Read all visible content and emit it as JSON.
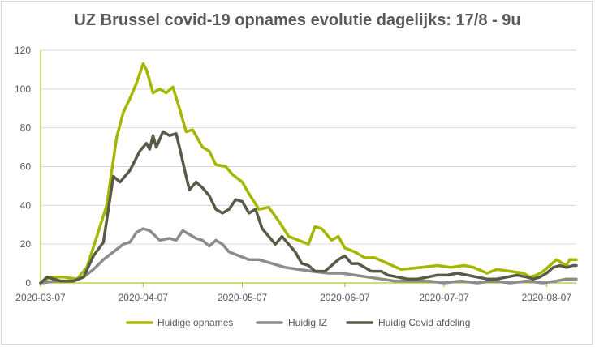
{
  "colors": {
    "opnames": "#a5b600",
    "iz": "#8c8c8c",
    "afdeling": "#575b48",
    "axis": "#a5b600",
    "grid": "#d9d9d9"
  },
  "chart_data": {
    "type": "line",
    "title": "UZ Brussel covid-19 opnames evolutie dagelijks: 17/8 - 9u",
    "xlabel": "",
    "ylabel": "",
    "ylim": [
      0,
      120
    ],
    "yticks": [
      "0",
      "20",
      "40",
      "60",
      "80",
      "100",
      "120"
    ],
    "xticks": [
      "2020-03-07",
      "2020-04-07",
      "2020-05-07",
      "2020-06-07",
      "2020-07-07",
      "2020-08-07"
    ],
    "grid": "horizontal",
    "legend": "bottom",
    "series": [
      {
        "name": "Huidige opnames",
        "color": "#a5b600",
        "points": [
          [
            "2020-03-07",
            0
          ],
          [
            "2020-03-10",
            3
          ],
          [
            "2020-03-14",
            3
          ],
          [
            "2020-03-18",
            2
          ],
          [
            "2020-03-21",
            8
          ],
          [
            "2020-03-24",
            24
          ],
          [
            "2020-03-27",
            40
          ],
          [
            "2020-03-30",
            75
          ],
          [
            "2020-04-01",
            88
          ],
          [
            "2020-04-03",
            95
          ],
          [
            "2020-04-05",
            103
          ],
          [
            "2020-04-07",
            113
          ],
          [
            "2020-04-08",
            110
          ],
          [
            "2020-04-10",
            98
          ],
          [
            "2020-04-12",
            100
          ],
          [
            "2020-04-14",
            98
          ],
          [
            "2020-04-16",
            101
          ],
          [
            "2020-04-18",
            90
          ],
          [
            "2020-04-20",
            78
          ],
          [
            "2020-04-22",
            79
          ],
          [
            "2020-04-25",
            70
          ],
          [
            "2020-04-27",
            68
          ],
          [
            "2020-04-29",
            61
          ],
          [
            "2020-05-02",
            60
          ],
          [
            "2020-05-04",
            56
          ],
          [
            "2020-05-07",
            52
          ],
          [
            "2020-05-09",
            46
          ],
          [
            "2020-05-12",
            38
          ],
          [
            "2020-05-15",
            39
          ],
          [
            "2020-05-18",
            32
          ],
          [
            "2020-05-21",
            24
          ],
          [
            "2020-05-24",
            22
          ],
          [
            "2020-05-27",
            20
          ],
          [
            "2020-05-29",
            29
          ],
          [
            "2020-05-31",
            28
          ],
          [
            "2020-06-03",
            22
          ],
          [
            "2020-06-05",
            24
          ],
          [
            "2020-06-07",
            18
          ],
          [
            "2020-06-10",
            16
          ],
          [
            "2020-06-13",
            13
          ],
          [
            "2020-06-16",
            13
          ],
          [
            "2020-06-20",
            10
          ],
          [
            "2020-06-24",
            7
          ],
          [
            "2020-06-30",
            8
          ],
          [
            "2020-07-05",
            9
          ],
          [
            "2020-07-09",
            8
          ],
          [
            "2020-07-13",
            9
          ],
          [
            "2020-07-16",
            8
          ],
          [
            "2020-07-20",
            5
          ],
          [
            "2020-07-23",
            7
          ],
          [
            "2020-07-27",
            6
          ],
          [
            "2020-07-31",
            5
          ],
          [
            "2020-08-02",
            3
          ],
          [
            "2020-08-04",
            4
          ],
          [
            "2020-08-06",
            6
          ],
          [
            "2020-08-08",
            9
          ],
          [
            "2020-08-10",
            12
          ],
          [
            "2020-08-12",
            10
          ],
          [
            "2020-08-13",
            9
          ],
          [
            "2020-08-14",
            12
          ],
          [
            "2020-08-16",
            12
          ]
        ]
      },
      {
        "name": "Huidig IZ",
        "color": "#8c8c8c",
        "points": [
          [
            "2020-03-07",
            0
          ],
          [
            "2020-03-12",
            1
          ],
          [
            "2020-03-17",
            1
          ],
          [
            "2020-03-20",
            3
          ],
          [
            "2020-03-23",
            7
          ],
          [
            "2020-03-26",
            12
          ],
          [
            "2020-03-29",
            16
          ],
          [
            "2020-04-01",
            20
          ],
          [
            "2020-04-03",
            21
          ],
          [
            "2020-04-05",
            26
          ],
          [
            "2020-04-07",
            28
          ],
          [
            "2020-04-09",
            27
          ],
          [
            "2020-04-12",
            22
          ],
          [
            "2020-04-15",
            23
          ],
          [
            "2020-04-17",
            22
          ],
          [
            "2020-04-19",
            27
          ],
          [
            "2020-04-21",
            25
          ],
          [
            "2020-04-23",
            23
          ],
          [
            "2020-04-25",
            22
          ],
          [
            "2020-04-27",
            19
          ],
          [
            "2020-04-29",
            22
          ],
          [
            "2020-05-01",
            20
          ],
          [
            "2020-05-03",
            16
          ],
          [
            "2020-05-06",
            14
          ],
          [
            "2020-05-09",
            12
          ],
          [
            "2020-05-12",
            12
          ],
          [
            "2020-05-16",
            10
          ],
          [
            "2020-05-20",
            8
          ],
          [
            "2020-05-24",
            7
          ],
          [
            "2020-05-28",
            6
          ],
          [
            "2020-06-02",
            5
          ],
          [
            "2020-06-06",
            5
          ],
          [
            "2020-06-10",
            4
          ],
          [
            "2020-06-14",
            3
          ],
          [
            "2020-06-18",
            2
          ],
          [
            "2020-06-22",
            1
          ],
          [
            "2020-06-27",
            1
          ],
          [
            "2020-07-02",
            1
          ],
          [
            "2020-07-07",
            0
          ],
          [
            "2020-07-12",
            1
          ],
          [
            "2020-07-17",
            0
          ],
          [
            "2020-07-22",
            1
          ],
          [
            "2020-07-27",
            0
          ],
          [
            "2020-08-01",
            1
          ],
          [
            "2020-08-06",
            0
          ],
          [
            "2020-08-10",
            1
          ],
          [
            "2020-08-13",
            2
          ],
          [
            "2020-08-16",
            2
          ]
        ]
      },
      {
        "name": "Huidig Covid afdeling",
        "color": "#575b48",
        "points": [
          [
            "2020-03-07",
            0
          ],
          [
            "2020-03-09",
            3
          ],
          [
            "2020-03-13",
            1
          ],
          [
            "2020-03-17",
            1
          ],
          [
            "2020-03-20",
            3
          ],
          [
            "2020-03-23",
            14
          ],
          [
            "2020-03-26",
            21
          ],
          [
            "2020-03-29",
            55
          ],
          [
            "2020-03-31",
            52
          ],
          [
            "2020-04-03",
            58
          ],
          [
            "2020-04-06",
            68
          ],
          [
            "2020-04-08",
            72
          ],
          [
            "2020-04-09",
            69
          ],
          [
            "2020-04-10",
            76
          ],
          [
            "2020-04-11",
            70
          ],
          [
            "2020-04-13",
            78
          ],
          [
            "2020-04-15",
            76
          ],
          [
            "2020-04-17",
            77
          ],
          [
            "2020-04-18",
            70
          ],
          [
            "2020-04-20",
            55
          ],
          [
            "2020-04-21",
            48
          ],
          [
            "2020-04-23",
            52
          ],
          [
            "2020-04-25",
            49
          ],
          [
            "2020-04-27",
            45
          ],
          [
            "2020-04-29",
            38
          ],
          [
            "2020-05-01",
            36
          ],
          [
            "2020-05-03",
            38
          ],
          [
            "2020-05-05",
            43
          ],
          [
            "2020-05-07",
            42
          ],
          [
            "2020-05-09",
            36
          ],
          [
            "2020-05-11",
            38
          ],
          [
            "2020-05-13",
            28
          ],
          [
            "2020-05-15",
            24
          ],
          [
            "2020-05-17",
            20
          ],
          [
            "2020-05-19",
            24
          ],
          [
            "2020-05-21",
            20
          ],
          [
            "2020-05-23",
            16
          ],
          [
            "2020-05-25",
            10
          ],
          [
            "2020-05-27",
            9
          ],
          [
            "2020-05-29",
            6
          ],
          [
            "2020-06-01",
            6
          ],
          [
            "2020-06-03",
            9
          ],
          [
            "2020-06-05",
            12
          ],
          [
            "2020-06-07",
            14
          ],
          [
            "2020-06-09",
            10
          ],
          [
            "2020-06-11",
            10
          ],
          [
            "2020-06-13",
            8
          ],
          [
            "2020-06-15",
            6
          ],
          [
            "2020-06-18",
            6
          ],
          [
            "2020-06-20",
            4
          ],
          [
            "2020-06-23",
            3
          ],
          [
            "2020-06-26",
            2
          ],
          [
            "2020-06-29",
            2
          ],
          [
            "2020-07-02",
            3
          ],
          [
            "2020-07-05",
            4
          ],
          [
            "2020-07-08",
            4
          ],
          [
            "2020-07-11",
            5
          ],
          [
            "2020-07-14",
            4
          ],
          [
            "2020-07-17",
            3
          ],
          [
            "2020-07-20",
            2
          ],
          [
            "2020-07-23",
            2
          ],
          [
            "2020-07-26",
            3
          ],
          [
            "2020-07-29",
            4
          ],
          [
            "2020-08-01",
            3
          ],
          [
            "2020-08-03",
            2
          ],
          [
            "2020-08-05",
            3
          ],
          [
            "2020-08-07",
            5
          ],
          [
            "2020-08-09",
            8
          ],
          [
            "2020-08-11",
            9
          ],
          [
            "2020-08-13",
            8
          ],
          [
            "2020-08-15",
            9
          ],
          [
            "2020-08-16",
            9
          ]
        ]
      }
    ]
  }
}
